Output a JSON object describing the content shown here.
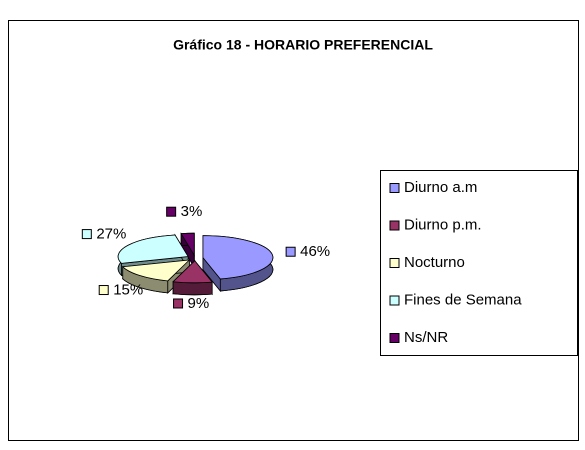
{
  "chart_data": {
    "type": "pie3d",
    "title": "Gráfico 18 - HORARIO PREFERENCIAL",
    "categories": [
      "Diurno  a.m",
      "Diurno p.m.",
      "Nocturno",
      "Fines de Semana",
      "Ns/NR"
    ],
    "values": [
      46,
      9,
      15,
      27,
      3
    ],
    "value_labels": [
      "46%",
      "9%",
      "15%",
      "27%",
      "3%"
    ],
    "colors": [
      "#9999ff",
      "#993366",
      "#ffffcc",
      "#ccffff",
      "#660066"
    ],
    "legend": "right"
  }
}
